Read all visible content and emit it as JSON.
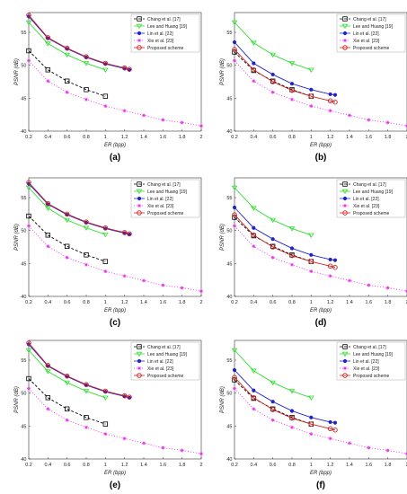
{
  "figure": {
    "panel_labels": [
      "(a)",
      "(b)",
      "(c)",
      "(d)",
      "(e)",
      "(f)"
    ]
  },
  "colors": {
    "Chang et al. [17]": "#000000",
    "Lee and Huang [19]": "#33dd33",
    "Lin et al. [22]": "#2222cc",
    "Xie et al. [23]": "#ee33ee",
    "Proposed scheme": "#cc2222"
  },
  "chart_data": [
    {
      "panel": "(a)",
      "type": "line",
      "xlabel": "ER (bpp)",
      "ylabel": "PSNR (dB)",
      "xlim": [
        0.2,
        2
      ],
      "ylim": [
        40,
        58
      ],
      "xticks": [
        "0.2",
        "0.4",
        "0.6",
        "0.8",
        "1",
        "1.2",
        "1.4",
        "1.6",
        "1.8",
        "2"
      ],
      "yticks": [
        "40",
        "45",
        "50",
        "55"
      ],
      "legend_position": "top-right",
      "series": [
        {
          "name": "Chang et al. [17]",
          "x": [
            0.2,
            0.4,
            0.6,
            0.8,
            1.0
          ],
          "y": [
            52.2,
            49.3,
            47.6,
            46.3,
            45.3
          ]
        },
        {
          "name": "Lee and Huang [19]",
          "x": [
            0.2,
            0.4,
            0.6,
            0.8,
            1.0
          ],
          "y": [
            56.5,
            53.3,
            51.6,
            50.3,
            49.3
          ]
        },
        {
          "name": "Lin et al. [22]",
          "x": [
            0.2,
            0.4,
            0.6,
            0.8,
            1.0,
            1.2,
            1.25
          ],
          "y": [
            57.4,
            54.1,
            52.5,
            51.2,
            50.2,
            49.5,
            49.3
          ]
        },
        {
          "name": "Xie et al. [23]",
          "x": [
            0.2,
            0.4,
            0.6,
            0.8,
            1.0,
            1.2,
            1.4,
            1.6,
            1.8,
            2.0
          ],
          "y": [
            50.7,
            47.6,
            45.9,
            44.8,
            43.8,
            43.1,
            42.4,
            41.7,
            41.3,
            40.8
          ]
        },
        {
          "name": "Proposed scheme",
          "x": [
            0.2,
            0.4,
            0.6,
            0.8,
            1.0,
            1.2,
            1.25
          ],
          "y": [
            57.6,
            54.2,
            52.6,
            51.3,
            50.3,
            49.6,
            49.4
          ]
        }
      ]
    },
    {
      "panel": "(b)",
      "type": "line",
      "xlabel": "ER (bpp)",
      "ylabel": "PSNR (dB)",
      "xlim": [
        0.2,
        2
      ],
      "ylim": [
        40,
        58
      ],
      "xticks": [
        "0.2",
        "0.4",
        "0.6",
        "0.8",
        "1",
        "1.2",
        "1.4",
        "1.6",
        "1.8",
        "2"
      ],
      "yticks": [
        "40",
        "45",
        "50",
        "55"
      ],
      "legend_position": "top-right",
      "series": [
        {
          "name": "Chang et al. [17]",
          "x": [
            0.2,
            0.4,
            0.6,
            0.8,
            1.0
          ],
          "y": [
            52.0,
            49.2,
            47.6,
            46.3,
            45.3
          ]
        },
        {
          "name": "Lee and Huang [19]",
          "x": [
            0.2,
            0.4,
            0.6,
            0.8,
            1.0
          ],
          "y": [
            56.5,
            53.4,
            51.6,
            50.3,
            49.3
          ]
        },
        {
          "name": "Lin et al. [22]",
          "x": [
            0.2,
            0.4,
            0.6,
            0.8,
            1.0,
            1.2,
            1.25
          ],
          "y": [
            53.5,
            50.3,
            48.6,
            47.2,
            46.3,
            45.6,
            45.5
          ]
        },
        {
          "name": "Xie et al. [23]",
          "x": [
            0.2,
            0.4,
            0.6,
            0.8,
            1.0,
            1.2,
            1.4,
            1.6,
            1.8,
            2.0
          ],
          "y": [
            50.7,
            47.6,
            45.9,
            44.8,
            43.8,
            43.1,
            42.4,
            41.7,
            41.3,
            40.8
          ]
        },
        {
          "name": "Proposed scheme",
          "x": [
            0.2,
            0.4,
            0.6,
            0.8,
            1.0,
            1.2,
            1.25
          ],
          "y": [
            52.4,
            49.3,
            47.5,
            46.2,
            45.3,
            44.6,
            44.4
          ]
        }
      ]
    },
    {
      "panel": "(c)",
      "type": "line",
      "xlabel": "ER (bpp)",
      "ylabel": "PSNR (dB)",
      "xlim": [
        0.2,
        2
      ],
      "ylim": [
        40,
        58
      ],
      "xticks": [
        "0.2",
        "0.4",
        "0.6",
        "0.8",
        "1",
        "1.2",
        "1.4",
        "1.6",
        "1.8",
        "2"
      ],
      "yticks": [
        "40",
        "45",
        "50",
        "55"
      ],
      "legend_position": "top-right",
      "series": [
        {
          "name": "Chang et al. [17]",
          "x": [
            0.2,
            0.4,
            0.6,
            0.8,
            1.0
          ],
          "y": [
            52.2,
            49.3,
            47.6,
            46.3,
            45.3
          ]
        },
        {
          "name": "Lee and Huang [19]",
          "x": [
            0.2,
            0.4,
            0.6,
            0.8,
            1.0
          ],
          "y": [
            56.5,
            53.4,
            51.6,
            50.4,
            49.4
          ]
        },
        {
          "name": "Lin et al. [22]",
          "x": [
            0.2,
            0.4,
            0.6,
            0.8,
            1.0,
            1.2,
            1.25
          ],
          "y": [
            57.1,
            54.0,
            52.4,
            51.2,
            50.3,
            49.6,
            49.4
          ]
        },
        {
          "name": "Xie et al. [23]",
          "x": [
            0.2,
            0.4,
            0.6,
            0.8,
            1.0,
            1.2,
            1.4,
            1.6,
            1.8,
            2.0
          ],
          "y": [
            50.7,
            47.6,
            45.9,
            44.8,
            43.8,
            43.1,
            42.4,
            41.7,
            41.3,
            40.8
          ]
        },
        {
          "name": "Proposed scheme",
          "x": [
            0.2,
            0.4,
            0.6,
            0.8,
            1.0,
            1.2,
            1.25
          ],
          "y": [
            57.3,
            54.1,
            52.5,
            51.3,
            50.4,
            49.7,
            49.5
          ]
        }
      ]
    },
    {
      "panel": "(d)",
      "type": "line",
      "xlabel": "ER (bpp)",
      "ylabel": "PSNR (dB)",
      "xlim": [
        0.2,
        2
      ],
      "ylim": [
        40,
        58
      ],
      "xticks": [
        "0.2",
        "0.4",
        "0.6",
        "0.8",
        "1",
        "1.2",
        "1.4",
        "1.6",
        "1.8",
        "2"
      ],
      "yticks": [
        "40",
        "45",
        "50",
        "55"
      ],
      "legend_position": "top-right",
      "series": [
        {
          "name": "Chang et al. [17]",
          "x": [
            0.2,
            0.4,
            0.6,
            0.8,
            1.0
          ],
          "y": [
            52.0,
            49.2,
            47.6,
            46.3,
            45.3
          ]
        },
        {
          "name": "Lee and Huang [19]",
          "x": [
            0.2,
            0.4,
            0.6,
            0.8,
            1.0
          ],
          "y": [
            56.5,
            53.4,
            51.6,
            50.3,
            49.3
          ]
        },
        {
          "name": "Lin et al. [22]",
          "x": [
            0.2,
            0.4,
            0.6,
            0.8,
            1.0,
            1.2,
            1.25
          ],
          "y": [
            53.5,
            50.4,
            48.7,
            47.3,
            46.3,
            45.6,
            45.5
          ]
        },
        {
          "name": "Xie et al. [23]",
          "x": [
            0.2,
            0.4,
            0.6,
            0.8,
            1.0,
            1.2,
            1.4,
            1.6,
            1.8,
            2.0
          ],
          "y": [
            50.7,
            47.6,
            45.9,
            44.8,
            43.8,
            43.1,
            42.4,
            41.7,
            41.3,
            40.8
          ]
        },
        {
          "name": "Proposed scheme",
          "x": [
            0.2,
            0.4,
            0.6,
            0.8,
            1.0,
            1.2,
            1.25
          ],
          "y": [
            52.4,
            49.3,
            47.5,
            46.2,
            45.3,
            44.6,
            44.4
          ]
        }
      ]
    },
    {
      "panel": "(e)",
      "type": "line",
      "xlabel": "ER (bpp)",
      "ylabel": "PSNR (dB)",
      "xlim": [
        0.2,
        2
      ],
      "ylim": [
        40,
        58
      ],
      "xticks": [
        "0.2",
        "0.4",
        "0.6",
        "0.8",
        "1",
        "1.2",
        "1.4",
        "1.6",
        "1.8",
        "2"
      ],
      "yticks": [
        "40",
        "45",
        "50",
        "55"
      ],
      "legend_position": "top-right",
      "series": [
        {
          "name": "Chang et al. [17]",
          "x": [
            0.2,
            0.4,
            0.6,
            0.8,
            1.0
          ],
          "y": [
            52.2,
            49.3,
            47.6,
            46.3,
            45.3
          ]
        },
        {
          "name": "Lee and Huang [19]",
          "x": [
            0.2,
            0.4,
            0.6,
            0.8,
            1.0
          ],
          "y": [
            56.5,
            53.3,
            51.6,
            50.3,
            49.3
          ]
        },
        {
          "name": "Lin et al. [22]",
          "x": [
            0.2,
            0.4,
            0.6,
            0.8,
            1.0,
            1.2,
            1.25
          ],
          "y": [
            57.4,
            54.1,
            52.5,
            51.2,
            50.2,
            49.5,
            49.3
          ]
        },
        {
          "name": "Xie et al. [23]",
          "x": [
            0.2,
            0.4,
            0.6,
            0.8,
            1.0,
            1.2,
            1.4,
            1.6,
            1.8,
            2.0
          ],
          "y": [
            50.7,
            47.6,
            45.9,
            44.8,
            43.8,
            43.1,
            42.4,
            41.7,
            41.3,
            40.8
          ]
        },
        {
          "name": "Proposed scheme",
          "x": [
            0.2,
            0.4,
            0.6,
            0.8,
            1.0,
            1.2,
            1.25
          ],
          "y": [
            57.6,
            54.2,
            52.6,
            51.3,
            50.3,
            49.6,
            49.4
          ]
        }
      ]
    },
    {
      "panel": "(f)",
      "type": "line",
      "xlabel": "ER (bpp)",
      "ylabel": "PSNR (dB)",
      "xlim": [
        0.2,
        2
      ],
      "ylim": [
        40,
        58
      ],
      "xticks": [
        "0.2",
        "0.4",
        "0.6",
        "0.8",
        "1",
        "1.2",
        "1.4",
        "1.6",
        "1.8",
        "2"
      ],
      "yticks": [
        "40",
        "45",
        "50",
        "55"
      ],
      "legend_position": "top-right",
      "series": [
        {
          "name": "Chang et al. [17]",
          "x": [
            0.2,
            0.4,
            0.6,
            0.8,
            1.0
          ],
          "y": [
            52.0,
            49.2,
            47.6,
            46.3,
            45.3
          ]
        },
        {
          "name": "Lee and Huang [19]",
          "x": [
            0.2,
            0.4,
            0.6,
            0.8,
            1.0
          ],
          "y": [
            56.5,
            53.4,
            51.6,
            50.3,
            49.3
          ]
        },
        {
          "name": "Lin et al. [22]",
          "x": [
            0.2,
            0.4,
            0.6,
            0.8,
            1.0,
            1.2,
            1.25
          ],
          "y": [
            53.5,
            50.4,
            48.7,
            47.3,
            46.3,
            45.6,
            45.5
          ]
        },
        {
          "name": "Xie et al. [23]",
          "x": [
            0.2,
            0.4,
            0.6,
            0.8,
            1.0,
            1.2,
            1.4,
            1.6,
            1.8,
            2.0
          ],
          "y": [
            50.7,
            47.6,
            45.9,
            44.8,
            43.8,
            43.1,
            42.4,
            41.7,
            41.3,
            40.8
          ]
        },
        {
          "name": "Proposed scheme",
          "x": [
            0.2,
            0.4,
            0.6,
            0.8,
            1.0,
            1.2,
            1.25
          ],
          "y": [
            52.4,
            49.3,
            47.5,
            46.2,
            45.3,
            44.6,
            44.4
          ]
        }
      ]
    }
  ]
}
